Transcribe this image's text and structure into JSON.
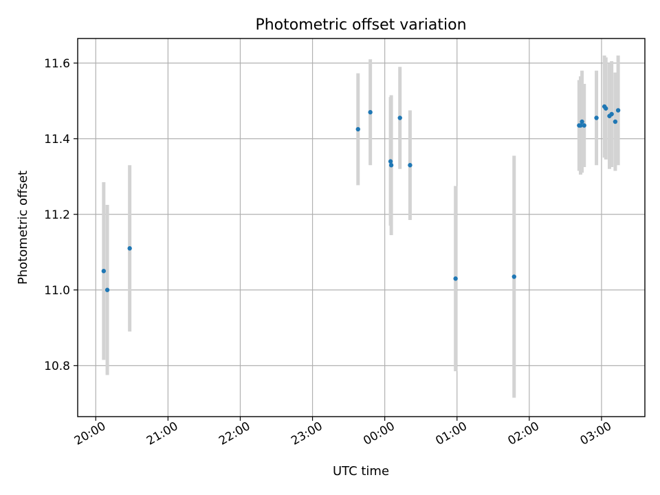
{
  "chart_data": {
    "type": "scatter",
    "title": "Photometric offset variation",
    "xlabel": "UTC time",
    "ylabel": "Photometric offset",
    "x_unit": "hours",
    "x_tick_values": [
      20,
      21,
      22,
      23,
      24,
      25,
      26,
      27
    ],
    "x_tick_labels": [
      "20:00",
      "21:00",
      "22:00",
      "23:00",
      "00:00",
      "01:00",
      "02:00",
      "03:00"
    ],
    "y_ticks": [
      10.8,
      11.0,
      11.2,
      11.4,
      11.6
    ],
    "y_tick_labels": [
      "10.8",
      "11.0",
      "11.2",
      "11.4",
      "11.6"
    ],
    "xlim": [
      19.75,
      27.6
    ],
    "ylim": [
      10.665,
      11.665
    ],
    "grid": true,
    "colors": {
      "points": "#1f77b4",
      "errorbars": "#d3d3d3"
    },
    "points": [
      {
        "x": 20.11,
        "y": 11.05,
        "err": 0.235
      },
      {
        "x": 20.16,
        "y": 11.0,
        "err": 0.225
      },
      {
        "x": 20.47,
        "y": 11.11,
        "err": 0.22
      },
      {
        "x": 23.63,
        "y": 11.425,
        "err": 0.148
      },
      {
        "x": 23.8,
        "y": 11.47,
        "err": 0.14
      },
      {
        "x": 24.08,
        "y": 11.34,
        "err": 0.17
      },
      {
        "x": 24.09,
        "y": 11.33,
        "err": 0.185
      },
      {
        "x": 24.21,
        "y": 11.455,
        "err": 0.135
      },
      {
        "x": 24.35,
        "y": 11.33,
        "err": 0.145
      },
      {
        "x": 24.98,
        "y": 11.03,
        "err": 0.245
      },
      {
        "x": 25.79,
        "y": 11.035,
        "err": 0.32
      },
      {
        "x": 26.69,
        "y": 11.435,
        "err": 0.12
      },
      {
        "x": 26.71,
        "y": 11.435,
        "err": 0.13
      },
      {
        "x": 26.73,
        "y": 11.445,
        "err": 0.135
      },
      {
        "x": 26.76,
        "y": 11.435,
        "err": 0.11
      },
      {
        "x": 26.93,
        "y": 11.455,
        "err": 0.125
      },
      {
        "x": 27.04,
        "y": 11.485,
        "err": 0.135
      },
      {
        "x": 27.06,
        "y": 11.48,
        "err": 0.135
      },
      {
        "x": 27.11,
        "y": 11.46,
        "err": 0.14
      },
      {
        "x": 27.14,
        "y": 11.465,
        "err": 0.14
      },
      {
        "x": 27.19,
        "y": 11.445,
        "err": 0.13
      },
      {
        "x": 27.23,
        "y": 11.475,
        "err": 0.145
      }
    ]
  }
}
